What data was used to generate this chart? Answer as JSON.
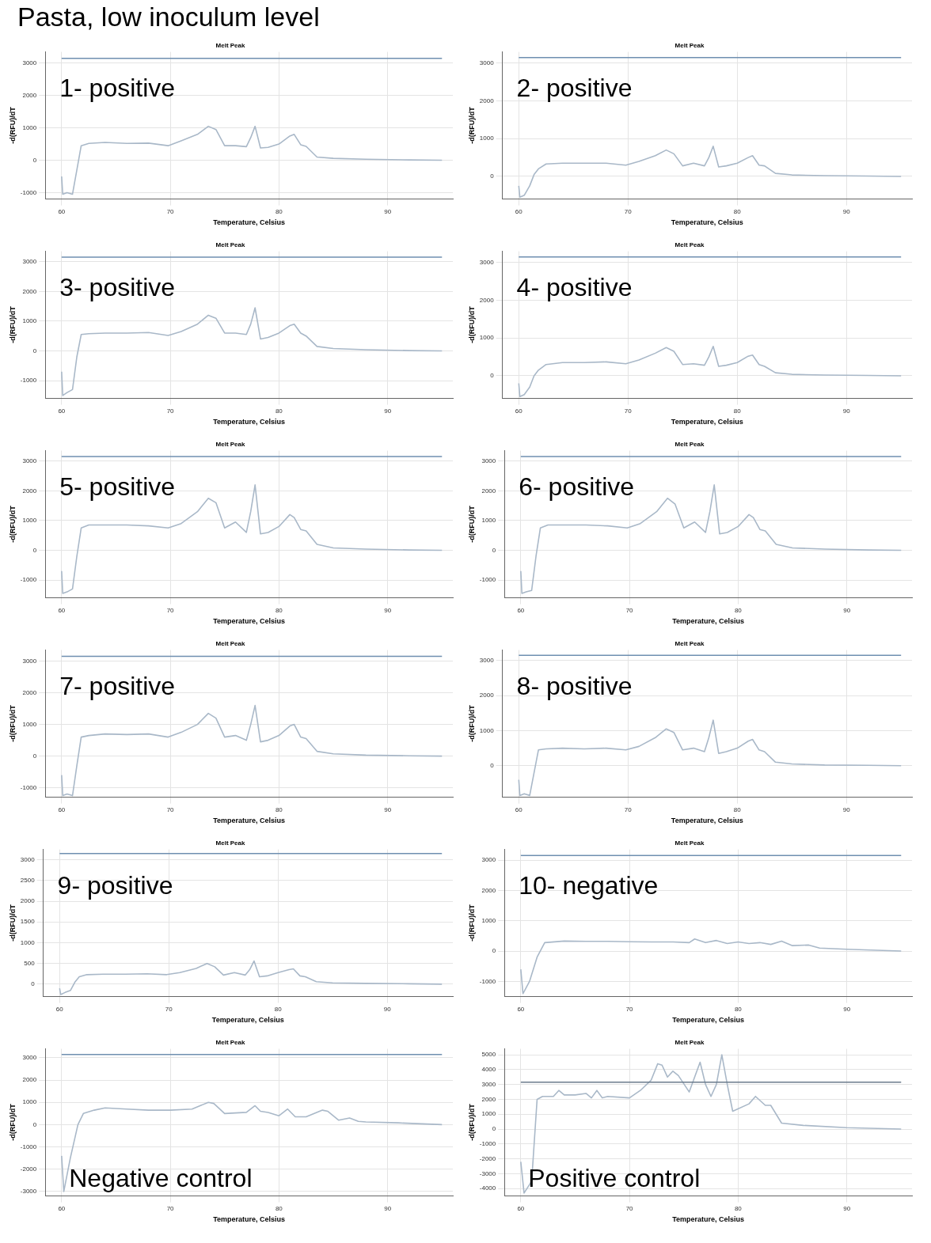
{
  "chart_data": [
    {
      "type": "other",
      "title": "Pasta, low inoculum level"
    },
    {
      "type": "line",
      "title": "Melt Peak",
      "xlabel": "Temperature, Celsius",
      "ylabel": "-d(RFU)/dT",
      "annotations": [
        "1- positive"
      ],
      "grid": true,
      "color": "#a9b8c8",
      "xlim": [
        58.5,
        96
      ],
      "xticks": [
        60,
        70,
        80,
        90
      ],
      "ylim": [
        -1200,
        3350
      ],
      "yticks": [
        -1000,
        0,
        1000,
        2000,
        3000
      ],
      "ref_lines": [
        {
          "axis": "y",
          "value": 3150,
          "color": "#6f8fb0"
        }
      ],
      "x": [
        60,
        60.1,
        60.5,
        61,
        61.4,
        61.8,
        62.5,
        64,
        66,
        68,
        69.8,
        71,
        72.5,
        73.5,
        74.2,
        75,
        76,
        77,
        77.4,
        77.8,
        78.3,
        79,
        80,
        81,
        81.4,
        82,
        82.5,
        83.5,
        85,
        88,
        92,
        95
      ],
      "values": [
        -500,
        -1050,
        -1000,
        -1050,
        -300,
        450,
        520,
        550,
        520,
        530,
        450,
        600,
        800,
        1050,
        950,
        450,
        450,
        420,
        700,
        1050,
        380,
        400,
        500,
        750,
        800,
        480,
        430,
        100,
        60,
        30,
        10,
        0
      ]
    },
    {
      "type": "line",
      "title": "Melt Peak",
      "xlabel": "Temperature, Celsius",
      "ylabel": "-d(RFU)/dT",
      "annotations": [
        "2- positive"
      ],
      "grid": true,
      "color": "#a9b8c8",
      "xlim": [
        58.5,
        96
      ],
      "xticks": [
        60,
        70,
        80,
        90
      ],
      "ylim": [
        -600,
        3300
      ],
      "yticks": [
        0,
        1000,
        2000,
        3000
      ],
      "ref_lines": [
        {
          "axis": "y",
          "value": 3150,
          "color": "#6f8fb0"
        }
      ],
      "x": [
        60,
        60.1,
        60.5,
        61,
        61.4,
        61.8,
        62.5,
        64,
        66,
        68,
        69.8,
        71,
        72.5,
        73.5,
        74.2,
        75,
        76,
        77,
        77.4,
        77.8,
        78.3,
        79,
        80,
        81,
        81.4,
        82,
        82.5,
        83.5,
        85,
        88,
        92,
        95
      ],
      "values": [
        -250,
        -550,
        -500,
        -250,
        50,
        200,
        330,
        350,
        350,
        350,
        300,
        400,
        550,
        700,
        600,
        280,
        350,
        280,
        500,
        800,
        250,
        280,
        350,
        500,
        550,
        300,
        280,
        80,
        40,
        20,
        10,
        0
      ]
    },
    {
      "type": "line",
      "title": "Melt Peak",
      "xlabel": "Temperature, Celsius",
      "ylabel": "-d(RFU)/dT",
      "annotations": [
        "3- positive"
      ],
      "grid": true,
      "color": "#a9b8c8",
      "xlim": [
        58.5,
        96
      ],
      "xticks": [
        60,
        70,
        80,
        90
      ],
      "ylim": [
        -1600,
        3350
      ],
      "yticks": [
        -1000,
        0,
        1000,
        2000,
        3000
      ],
      "ref_lines": [
        {
          "axis": "y",
          "value": 3150,
          "color": "#6f8fb0"
        }
      ],
      "x": [
        60,
        60.1,
        60.5,
        61,
        61.4,
        61.8,
        62.5,
        64,
        66,
        68,
        69.8,
        71,
        72.5,
        73.5,
        74.2,
        75,
        76,
        77,
        77.4,
        77.8,
        78.3,
        79,
        80,
        81,
        81.4,
        82,
        82.5,
        83.5,
        85,
        88,
        92,
        95
      ],
      "values": [
        -700,
        -1500,
        -1400,
        -1300,
        -200,
        550,
        580,
        600,
        600,
        620,
        520,
        650,
        900,
        1200,
        1100,
        600,
        600,
        550,
        900,
        1450,
        400,
        450,
        600,
        850,
        900,
        600,
        500,
        150,
        80,
        40,
        10,
        0
      ]
    },
    {
      "type": "line",
      "title": "Melt Peak",
      "xlabel": "Temperature, Celsius",
      "ylabel": "-d(RFU)/dT",
      "annotations": [
        "4- positive"
      ],
      "grid": true,
      "color": "#a9b8c8",
      "xlim": [
        58.5,
        96
      ],
      "xticks": [
        60,
        70,
        80,
        90
      ],
      "ylim": [
        -600,
        3300
      ],
      "yticks": [
        0,
        1000,
        2000,
        3000
      ],
      "ref_lines": [
        {
          "axis": "y",
          "value": 3150,
          "color": "#6f8fb0"
        }
      ],
      "x": [
        60,
        60.1,
        60.5,
        61,
        61.4,
        61.8,
        62.5,
        64,
        66,
        68,
        69.8,
        71,
        72.5,
        73.5,
        74.2,
        75,
        76,
        77,
        77.4,
        77.8,
        78.3,
        79,
        80,
        81,
        81.4,
        82,
        82.5,
        83.5,
        85,
        88,
        92,
        95
      ],
      "values": [
        -200,
        -550,
        -500,
        -300,
        0,
        150,
        300,
        350,
        350,
        370,
        320,
        420,
        600,
        750,
        650,
        300,
        320,
        280,
        500,
        780,
        250,
        280,
        350,
        520,
        550,
        300,
        250,
        80,
        40,
        20,
        10,
        0
      ]
    },
    {
      "type": "line",
      "title": "Melt Peak",
      "xlabel": "Temperature, Celsius",
      "ylabel": "-d(RFU)/dT",
      "annotations": [
        "5- positive"
      ],
      "grid": true,
      "color": "#a9b8c8",
      "xlim": [
        58.5,
        96
      ],
      "xticks": [
        60,
        70,
        80,
        90
      ],
      "ylim": [
        -1600,
        3350
      ],
      "yticks": [
        -1000,
        0,
        1000,
        2000,
        3000
      ],
      "ref_lines": [
        {
          "axis": "y",
          "value": 3150,
          "color": "#6f8fb0"
        }
      ],
      "x": [
        60,
        60.1,
        60.5,
        61,
        61.4,
        61.8,
        62.5,
        64,
        66,
        68,
        69.8,
        71,
        72.5,
        73.5,
        74.2,
        75,
        76,
        77,
        77.4,
        77.8,
        78.3,
        79,
        80,
        81,
        81.4,
        82,
        82.5,
        83.5,
        85,
        88,
        92,
        95
      ],
      "values": [
        -700,
        -1450,
        -1400,
        -1300,
        -200,
        750,
        850,
        850,
        850,
        820,
        750,
        900,
        1300,
        1750,
        1600,
        750,
        950,
        600,
        1300,
        2200,
        550,
        600,
        800,
        1200,
        1100,
        700,
        650,
        200,
        80,
        40,
        10,
        0
      ]
    },
    {
      "type": "line",
      "title": "Melt Peak",
      "xlabel": "Temperature, Celsius",
      "ylabel": "-d(RFU)/dT",
      "annotations": [
        "6- positive"
      ],
      "grid": true,
      "color": "#a9b8c8",
      "xlim": [
        58.5,
        96
      ],
      "xticks": [
        60,
        70,
        80,
        90
      ],
      "ylim": [
        -1600,
        3350
      ],
      "yticks": [
        -1000,
        0,
        1000,
        2000,
        3000
      ],
      "ref_lines": [
        {
          "axis": "y",
          "value": 3150,
          "color": "#6f8fb0"
        }
      ],
      "x": [
        60,
        60.1,
        60.5,
        61,
        61.4,
        61.8,
        62.5,
        64,
        66,
        68,
        69.8,
        71,
        72.5,
        73.5,
        74.2,
        75,
        76,
        77,
        77.4,
        77.8,
        78.3,
        79,
        80,
        81,
        81.4,
        82,
        82.5,
        83.5,
        85,
        88,
        92,
        95
      ],
      "values": [
        -700,
        -1450,
        -1400,
        -1350,
        -200,
        750,
        850,
        850,
        850,
        820,
        750,
        900,
        1300,
        1750,
        1550,
        750,
        950,
        600,
        1300,
        2200,
        550,
        600,
        800,
        1200,
        1100,
        700,
        650,
        200,
        80,
        40,
        10,
        0
      ]
    },
    {
      "type": "line",
      "title": "Melt Peak",
      "xlabel": "Temperature, Celsius",
      "ylabel": "-d(RFU)/dT",
      "annotations": [
        "7- positive"
      ],
      "grid": true,
      "color": "#a9b8c8",
      "xlim": [
        58.5,
        96
      ],
      "xticks": [
        60,
        70,
        80,
        90
      ],
      "ylim": [
        -1300,
        3350
      ],
      "yticks": [
        -1000,
        0,
        1000,
        2000,
        3000
      ],
      "ref_lines": [
        {
          "axis": "y",
          "value": 3150,
          "color": "#6f8fb0"
        }
      ],
      "x": [
        60,
        60.1,
        60.5,
        61,
        61.4,
        61.8,
        62.5,
        64,
        66,
        68,
        69.8,
        71,
        72.5,
        73.5,
        74.2,
        75,
        76,
        77,
        77.4,
        77.8,
        78.3,
        79,
        80,
        81,
        81.4,
        82,
        82.5,
        83.5,
        85,
        88,
        92,
        95
      ],
      "values": [
        -600,
        -1250,
        -1200,
        -1250,
        -300,
        600,
        650,
        700,
        680,
        700,
        600,
        750,
        1000,
        1350,
        1200,
        600,
        650,
        500,
        1000,
        1600,
        450,
        500,
        650,
        950,
        1000,
        600,
        550,
        150,
        70,
        30,
        10,
        0
      ]
    },
    {
      "type": "line",
      "title": "Melt Peak",
      "xlabel": "Temperature, Celsius",
      "ylabel": "-d(RFU)/dT",
      "annotations": [
        "8- positive"
      ],
      "grid": true,
      "color": "#a9b8c8",
      "xlim": [
        58.5,
        96
      ],
      "xticks": [
        60,
        70,
        80,
        90
      ],
      "ylim": [
        -900,
        3300
      ],
      "yticks": [
        0,
        1000,
        2000,
        3000
      ],
      "ref_lines": [
        {
          "axis": "y",
          "value": 3150,
          "color": "#6f8fb0"
        }
      ],
      "x": [
        60,
        60.1,
        60.5,
        61,
        61.4,
        61.8,
        62.5,
        64,
        66,
        68,
        69.8,
        71,
        72.5,
        73.5,
        74.2,
        75,
        76,
        77,
        77.4,
        77.8,
        78.3,
        79,
        80,
        81,
        81.4,
        82,
        82.5,
        83.5,
        85,
        88,
        92,
        95
      ],
      "values": [
        -400,
        -850,
        -800,
        -850,
        -200,
        450,
        480,
        500,
        480,
        500,
        450,
        550,
        800,
        1050,
        950,
        450,
        500,
        400,
        800,
        1300,
        350,
        400,
        500,
        700,
        750,
        450,
        400,
        100,
        50,
        20,
        10,
        0
      ]
    },
    {
      "type": "line",
      "title": "Melt Peak",
      "xlabel": "Temperature, Celsius",
      "ylabel": "-d(RFU)/dT",
      "annotations": [
        "9- positive"
      ],
      "grid": true,
      "color": "#a9b8c8",
      "xlim": [
        58.5,
        96
      ],
      "xticks": [
        60,
        70,
        80,
        90
      ],
      "ylim": [
        -300,
        3250
      ],
      "yticks": [
        0,
        500,
        1000,
        1500,
        2000,
        2500,
        3000
      ],
      "ref_lines": [
        {
          "axis": "y",
          "value": 3150,
          "color": "#6f8fb0"
        }
      ],
      "x": [
        60,
        60.1,
        60.5,
        61,
        61.4,
        61.8,
        62.5,
        64,
        66,
        68,
        69.8,
        71,
        72.5,
        73.5,
        74.2,
        75,
        76,
        77,
        77.4,
        77.8,
        78.3,
        79,
        80,
        81,
        81.4,
        82,
        82.5,
        83.5,
        85,
        88,
        92,
        95
      ],
      "values": [
        -100,
        -250,
        -200,
        -150,
        50,
        180,
        230,
        240,
        240,
        250,
        230,
        280,
        380,
        500,
        420,
        220,
        280,
        220,
        350,
        560,
        180,
        200,
        280,
        350,
        370,
        200,
        180,
        60,
        30,
        20,
        10,
        0
      ]
    },
    {
      "type": "line",
      "title": "Melt Peak",
      "xlabel": "Temperature, Celsius",
      "ylabel": "-d(RFU)/dT",
      "annotations": [
        "10- negative"
      ],
      "grid": true,
      "color": "#a9b8c8",
      "xlim": [
        58.5,
        96
      ],
      "xticks": [
        60,
        70,
        80,
        90
      ],
      "ylim": [
        -1500,
        3350
      ],
      "yticks": [
        -1000,
        0,
        1000,
        2000,
        3000
      ],
      "ref_lines": [
        {
          "axis": "y",
          "value": 3150,
          "color": "#6f8fb0"
        }
      ],
      "x": [
        60,
        60.2,
        60.8,
        61.5,
        62.2,
        64,
        66,
        68,
        70,
        72,
        74,
        75.5,
        76,
        77,
        78,
        79,
        80,
        81,
        82,
        83,
        84,
        85,
        86.5,
        87.5,
        90,
        95
      ],
      "values": [
        -600,
        -1400,
        -1000,
        -200,
        280,
        330,
        320,
        320,
        310,
        300,
        300,
        280,
        400,
        280,
        350,
        250,
        300,
        250,
        280,
        220,
        330,
        180,
        200,
        100,
        60,
        0
      ]
    },
    {
      "type": "line",
      "title": "Melt Peak",
      "xlabel": "Temperature, Celsius",
      "ylabel": "-d(RFU)/dT",
      "annotations": [
        "Negative control"
      ],
      "grid": true,
      "color": "#a9b8c8",
      "xlim": [
        58.5,
        96
      ],
      "xticks": [
        60,
        70,
        80,
        90
      ],
      "ylim": [
        -3200,
        3400
      ],
      "yticks": [
        -3000,
        -2000,
        -1000,
        0,
        1000,
        2000,
        3000
      ],
      "ref_lines": [
        {
          "axis": "y",
          "value": 3150,
          "color": "#6f8fb0"
        }
      ],
      "x": [
        60,
        60.2,
        60.8,
        61.5,
        62,
        63,
        64,
        66,
        68,
        70,
        72,
        73.5,
        74,
        75,
        77,
        77.8,
        78.3,
        79,
        80,
        80.8,
        81.5,
        82.5,
        84,
        84.5,
        85.5,
        86.5,
        87.3,
        88,
        91,
        95
      ],
      "values": [
        -1400,
        -3000,
        -1500,
        0,
        500,
        650,
        750,
        700,
        650,
        650,
        700,
        1000,
        950,
        500,
        550,
        850,
        600,
        550,
        400,
        700,
        350,
        350,
        650,
        600,
        200,
        300,
        150,
        120,
        80,
        0
      ]
    },
    {
      "type": "line",
      "title": "Melt Peak",
      "xlabel": "Temperature, Celsius",
      "ylabel": "-d(RFU)/dT",
      "annotations": [
        "Positive control"
      ],
      "grid": true,
      "color": "#a9b8c8",
      "xlim": [
        58.5,
        96
      ],
      "xticks": [
        60,
        70,
        80,
        90
      ],
      "ylim": [
        -4500,
        5400
      ],
      "yticks": [
        -4000,
        -3000,
        -2000,
        -1000,
        0,
        1000,
        2000,
        3000,
        4000,
        5000
      ],
      "ref_lines": [
        {
          "axis": "y",
          "value": 3150,
          "color": "#6b7b8b"
        }
      ],
      "x": [
        60,
        60.3,
        61,
        61.5,
        62,
        63,
        63.5,
        64,
        65,
        66,
        66.5,
        67,
        67.5,
        68,
        70,
        71,
        72,
        72.6,
        73,
        73.5,
        74,
        74.5,
        75.5,
        76,
        76.5,
        77,
        77.5,
        78,
        78.5,
        79,
        79.5,
        81,
        81.6,
        82.5,
        83,
        84,
        86,
        90,
        95
      ],
      "values": [
        -2200,
        -4300,
        -3500,
        2000,
        2200,
        2200,
        2600,
        2300,
        2300,
        2400,
        2100,
        2600,
        2100,
        2200,
        2100,
        2600,
        3300,
        4400,
        4300,
        3500,
        3900,
        3600,
        2500,
        3500,
        4500,
        3000,
        2200,
        3000,
        5000,
        3000,
        1200,
        1700,
        2200,
        1600,
        1600,
        400,
        250,
        100,
        0
      ]
    }
  ]
}
